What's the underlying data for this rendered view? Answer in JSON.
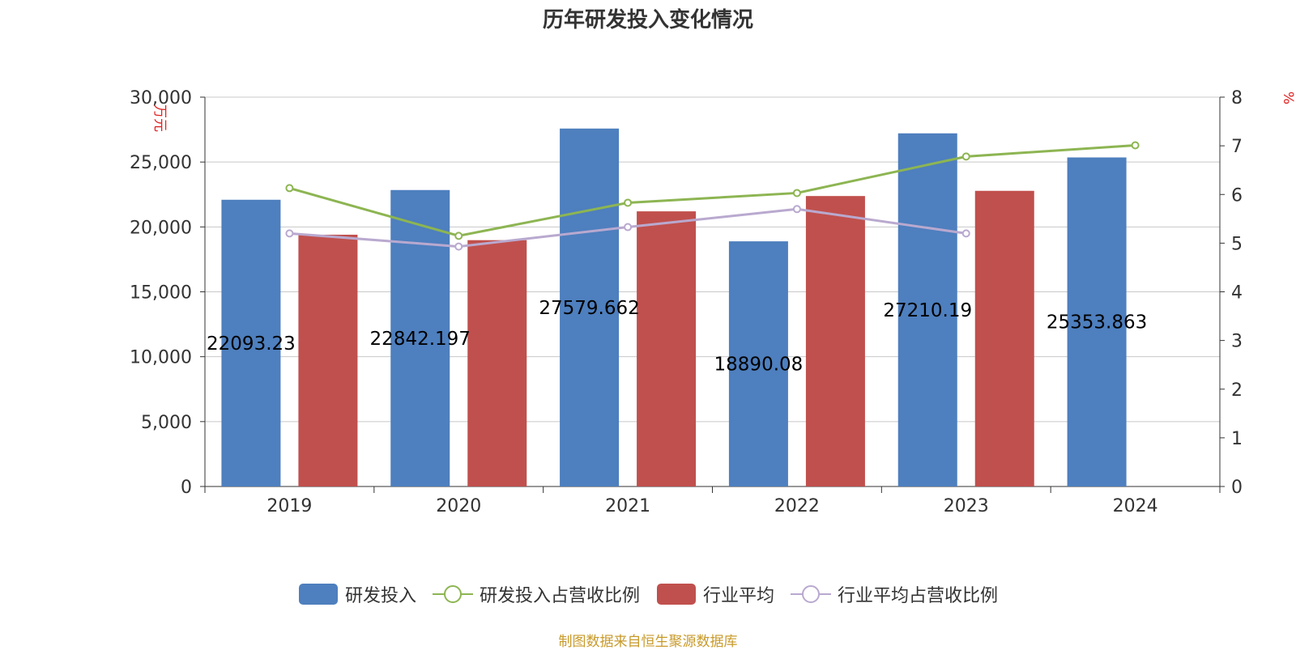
{
  "chart_data": {
    "type": "bar",
    "title": "历年研发投入变化情况",
    "categories": [
      "2019",
      "2020",
      "2021",
      "2022",
      "2023",
      "2024"
    ],
    "y_left": {
      "label": "万元",
      "ticks": [
        "0",
        "5,000",
        "10,000",
        "15,000",
        "20,000",
        "25,000",
        "30,000"
      ],
      "min": 0,
      "max": 30000
    },
    "y_right": {
      "label": "%",
      "ticks": [
        "0",
        "1",
        "2",
        "3",
        "4",
        "5",
        "6",
        "7",
        "8"
      ],
      "min": 0,
      "max": 8
    },
    "series": [
      {
        "name": "研发投入",
        "kind": "bar",
        "color": "#4e7fbe",
        "values": [
          22093.23,
          22842.197,
          27579.662,
          18890.08,
          27210.19,
          25353.863
        ],
        "labels": [
          "22093.23",
          "22842.197",
          "27579.662",
          "18890.08",
          "27210.19",
          "25353.863"
        ]
      },
      {
        "name": "研发投入占营收比例",
        "kind": "line",
        "axis": "right",
        "color": "#8db552",
        "values": [
          6.13,
          5.15,
          5.83,
          6.03,
          6.78,
          7.01
        ]
      },
      {
        "name": "行业平均",
        "kind": "bar",
        "color": "#c0504d",
        "values": [
          19400,
          18980,
          21200,
          22380,
          22780,
          null
        ]
      },
      {
        "name": "行业平均占营收比例",
        "kind": "line",
        "axis": "right",
        "color": "#b9a9cf",
        "values": [
          5.2,
          4.93,
          5.33,
          5.7,
          5.2,
          null
        ]
      }
    ],
    "legend": [
      "研发投入",
      "研发投入占营收比例",
      "行业平均",
      "行业平均占营收比例"
    ],
    "source": "制图数据来自恒生聚源数据库"
  }
}
